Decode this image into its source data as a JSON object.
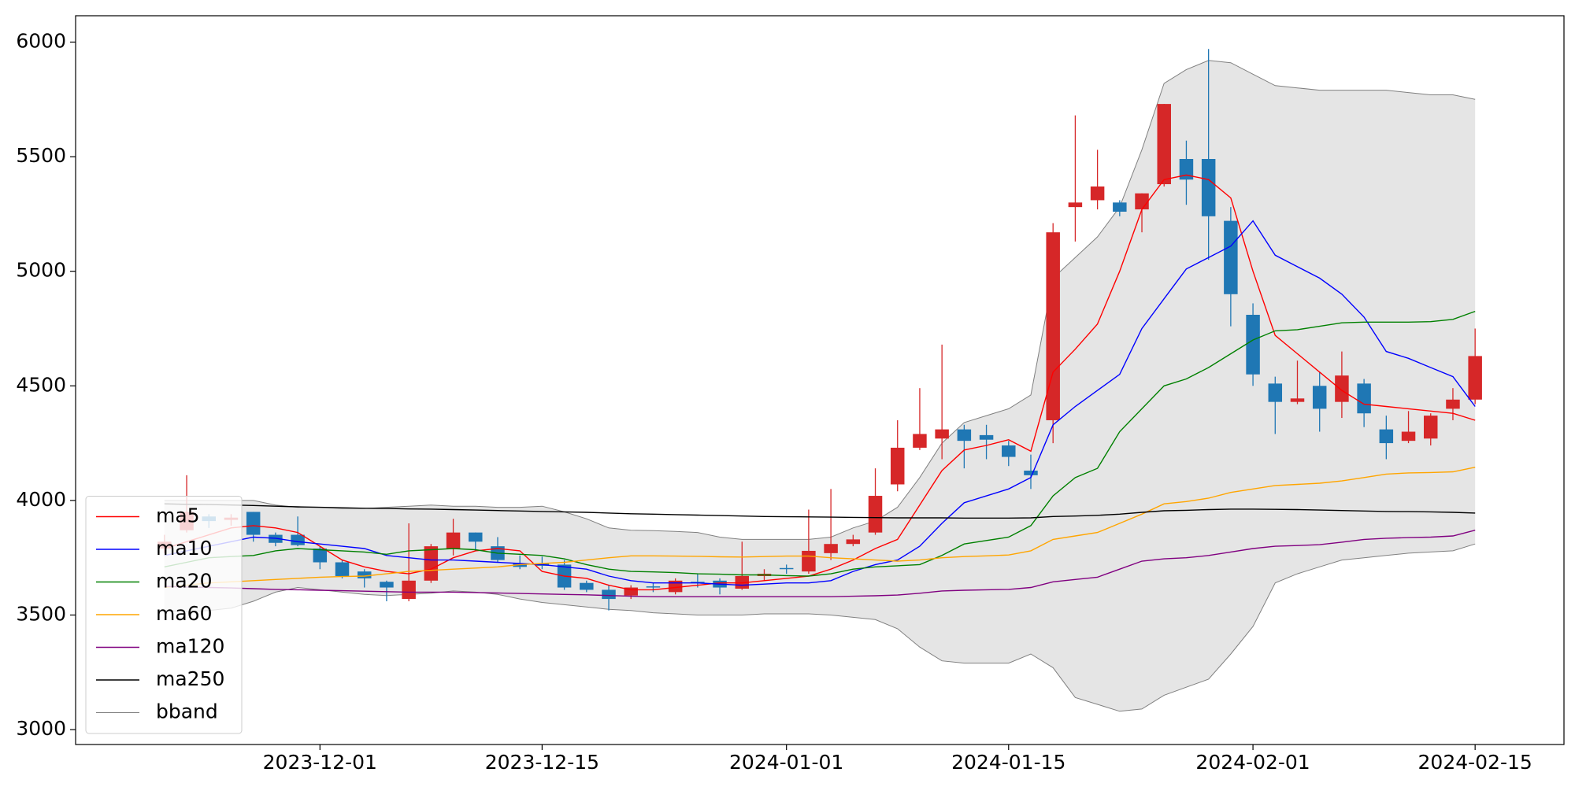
{
  "chart_data": {
    "type": "candlestick",
    "categories": [
      null,
      null,
      null,
      null,
      null,
      null,
      null,
      "2023-12-01",
      null,
      null,
      null,
      null,
      null,
      null,
      null,
      null,
      null,
      "2023-12-15",
      null,
      null,
      null,
      null,
      null,
      null,
      null,
      null,
      null,
      null,
      "2024-01-01",
      null,
      null,
      null,
      null,
      null,
      null,
      null,
      null,
      null,
      "2024-01-15",
      null,
      null,
      null,
      null,
      null,
      null,
      null,
      null,
      null,
      null,
      "2024-02-01",
      null,
      null,
      null,
      null,
      null,
      null,
      null,
      null,
      null,
      "2024-02-15"
    ],
    "candles": {
      "up_color": "#d62728",
      "down_color": "#1f77b4",
      "open": [
        3790,
        3870,
        3930,
        3915,
        3950,
        3850,
        3850,
        3790,
        3730,
        3690,
        3645,
        3570,
        3650,
        3790,
        3860,
        3800,
        3725,
        3725,
        3720,
        3640,
        3610,
        3585,
        3625,
        3600,
        3645,
        3650,
        3615,
        3670,
        3705,
        3690,
        3770,
        3810,
        3860,
        4070,
        4230,
        4270,
        4310,
        4285,
        4240,
        4130,
        4350,
        5280,
        5310,
        5300,
        5270,
        5380,
        5490,
        5490,
        5220,
        4810,
        4510,
        4430,
        4500,
        4430,
        4510,
        4310,
        4260,
        4270,
        4400,
        4440
      ],
      "high": [
        3850,
        4110,
        3940,
        3940,
        3950,
        3860,
        3930,
        3800,
        3740,
        3700,
        3650,
        3900,
        3810,
        3920,
        3860,
        3840,
        3760,
        3755,
        3740,
        3650,
        3630,
        3630,
        3640,
        3660,
        3680,
        3660,
        3820,
        3700,
        3720,
        3960,
        4050,
        3850,
        4140,
        4350,
        4490,
        4680,
        4330,
        4330,
        4260,
        4200,
        5210,
        5680,
        5530,
        5310,
        5340,
        5730,
        5570,
        5970,
        5280,
        4860,
        4540,
        4610,
        4560,
        4650,
        4530,
        4370,
        4390,
        4380,
        4490,
        4750
      ],
      "low": [
        3770,
        3860,
        3880,
        3890,
        3820,
        3800,
        3800,
        3700,
        3660,
        3620,
        3560,
        3560,
        3640,
        3760,
        3780,
        3730,
        3700,
        3700,
        3610,
        3600,
        3520,
        3570,
        3600,
        3590,
        3620,
        3590,
        3610,
        3650,
        3680,
        3680,
        3740,
        3800,
        3850,
        4040,
        4220,
        4180,
        4140,
        4180,
        4150,
        4050,
        4250,
        5130,
        5270,
        5240,
        5170,
        5370,
        5290,
        5050,
        4760,
        4500,
        4290,
        4420,
        4300,
        4360,
        4320,
        4180,
        4250,
        4240,
        4350,
        4420
      ],
      "close": [
        3820,
        3950,
        3910,
        3925,
        3850,
        3815,
        3805,
        3730,
        3670,
        3660,
        3620,
        3650,
        3800,
        3860,
        3820,
        3740,
        3710,
        3715,
        3620,
        3610,
        3570,
        3620,
        3620,
        3650,
        3640,
        3620,
        3670,
        3680,
        3700,
        3780,
        3810,
        3830,
        4020,
        4230,
        4290,
        4310,
        4260,
        4265,
        4190,
        4110,
        5170,
        5300,
        5370,
        5260,
        5340,
        5730,
        5400,
        5240,
        4900,
        4550,
        4430,
        4445,
        4400,
        4545,
        4380,
        4250,
        4300,
        4370,
        4440,
        4630
      ]
    },
    "series": [
      {
        "name": "ma5",
        "color": "#ff0000",
        "values": [
          3790,
          3820,
          3850,
          3880,
          3890,
          3880,
          3860,
          3800,
          3740,
          3710,
          3690,
          3680,
          3700,
          3750,
          3780,
          3790,
          3780,
          3690,
          3670,
          3660,
          3630,
          3610,
          3610,
          3620,
          3630,
          3640,
          3640,
          3650,
          3660,
          3670,
          3700,
          3740,
          3790,
          3830,
          3980,
          4130,
          4220,
          4240,
          4265,
          4215,
          4560,
          4660,
          4770,
          5000,
          5270,
          5400,
          5420,
          5400,
          5320,
          5000,
          4720,
          4640,
          4560,
          4480,
          4420,
          4410,
          4400,
          4390,
          4380,
          4350
        ]
      },
      {
        "name": "ma10",
        "color": "#0000ff",
        "values": [
          3760,
          3780,
          3800,
          3820,
          3840,
          3835,
          3820,
          3810,
          3800,
          3790,
          3760,
          3750,
          3740,
          3740,
          3735,
          3730,
          3725,
          3720,
          3710,
          3700,
          3670,
          3650,
          3640,
          3640,
          3640,
          3635,
          3630,
          3635,
          3640,
          3640,
          3650,
          3690,
          3720,
          3740,
          3800,
          3900,
          3990,
          4020,
          4050,
          4100,
          4330,
          4410,
          4480,
          4550,
          4750,
          4880,
          5010,
          5060,
          5110,
          5220,
          5070,
          5020,
          4970,
          4900,
          4800,
          4650,
          4620,
          4580,
          4540,
          4410
        ]
      },
      {
        "name": "ma20",
        "color": "#008000",
        "values": [
          3710,
          3730,
          3750,
          3755,
          3760,
          3780,
          3790,
          3785,
          3780,
          3775,
          3765,
          3780,
          3785,
          3790,
          3785,
          3770,
          3765,
          3760,
          3745,
          3720,
          3700,
          3690,
          3688,
          3685,
          3680,
          3678,
          3675,
          3675,
          3672,
          3670,
          3680,
          3700,
          3710,
          3715,
          3720,
          3760,
          3810,
          3825,
          3840,
          3890,
          4020,
          4100,
          4140,
          4300,
          4400,
          4500,
          4530,
          4580,
          4640,
          4700,
          4740,
          4745,
          4760,
          4775,
          4778,
          4778,
          4778,
          4780,
          4790,
          4825
        ]
      },
      {
        "name": "ma60",
        "color": "#ffa500",
        "values": [
          3620,
          3630,
          3640,
          3645,
          3650,
          3655,
          3660,
          3665,
          3668,
          3670,
          3680,
          3690,
          3695,
          3700,
          3705,
          3710,
          3720,
          3725,
          3730,
          3740,
          3750,
          3758,
          3758,
          3757,
          3756,
          3754,
          3753,
          3755,
          3757,
          3757,
          3750,
          3745,
          3740,
          3735,
          3740,
          3750,
          3755,
          3758,
          3762,
          3780,
          3830,
          3845,
          3860,
          3900,
          3940,
          3985,
          3995,
          4010,
          4035,
          4050,
          4065,
          4070,
          4075,
          4085,
          4100,
          4115,
          4120,
          4122,
          4125,
          4145
        ]
      },
      {
        "name": "ma120",
        "color": "#800080",
        "values": [
          3625,
          3622,
          3620,
          3618,
          3615,
          3612,
          3610,
          3608,
          3606,
          3604,
          3602,
          3600,
          3600,
          3600,
          3598,
          3596,
          3594,
          3592,
          3590,
          3588,
          3585,
          3582,
          3580,
          3580,
          3580,
          3580,
          3580,
          3580,
          3580,
          3580,
          3580,
          3582,
          3584,
          3587,
          3595,
          3605,
          3608,
          3610,
          3612,
          3620,
          3645,
          3655,
          3665,
          3700,
          3735,
          3745,
          3750,
          3760,
          3775,
          3790,
          3800,
          3803,
          3807,
          3818,
          3830,
          3835,
          3838,
          3840,
          3845,
          3870
        ]
      },
      {
        "name": "ma250",
        "color": "#000000",
        "values": [
          3985,
          3983,
          3982,
          3980,
          3978,
          3975,
          3972,
          3970,
          3968,
          3966,
          3965,
          3963,
          3962,
          3960,
          3958,
          3956,
          3954,
          3952,
          3950,
          3948,
          3945,
          3942,
          3940,
          3938,
          3936,
          3934,
          3932,
          3930,
          3929,
          3928,
          3927,
          3926,
          3925,
          3924,
          3924,
          3924,
          3923,
          3923,
          3923,
          3924,
          3930,
          3932,
          3935,
          3940,
          3948,
          3955,
          3957,
          3960,
          3962,
          3962,
          3961,
          3960,
          3958,
          3956,
          3954,
          3952,
          3951,
          3950,
          3948,
          3945
        ]
      }
    ],
    "bband": {
      "name": "bband",
      "color": "#808080",
      "fill": "#e5e5e5",
      "upper": [
        4000,
        4000,
        4000,
        4000,
        4000,
        3980,
        3970,
        3970,
        3965,
        3965,
        3970,
        3975,
        3980,
        3975,
        3975,
        3970,
        3970,
        3975,
        3950,
        3920,
        3880,
        3870,
        3868,
        3865,
        3860,
        3840,
        3830,
        3830,
        3830,
        3830,
        3840,
        3880,
        3910,
        3970,
        4100,
        4250,
        4340,
        4370,
        4400,
        4460,
        4970,
        5060,
        5150,
        5280,
        5530,
        5820,
        5880,
        5920,
        5910,
        5860,
        5810,
        5800,
        5790,
        5790,
        5790,
        5790,
        5780,
        5770,
        5770,
        5750
      ],
      "lower": [
        3520,
        3515,
        3520,
        3530,
        3560,
        3600,
        3620,
        3610,
        3600,
        3590,
        3585,
        3590,
        3595,
        3605,
        3600,
        3590,
        3570,
        3555,
        3545,
        3535,
        3525,
        3520,
        3510,
        3505,
        3500,
        3500,
        3500,
        3505,
        3505,
        3505,
        3500,
        3490,
        3480,
        3440,
        3360,
        3300,
        3290,
        3290,
        3290,
        3330,
        3270,
        3140,
        3110,
        3080,
        3090,
        3150,
        3185,
        3220,
        3330,
        3450,
        3640,
        3680,
        3710,
        3740,
        3750,
        3760,
        3770,
        3775,
        3780,
        3810
      ]
    },
    "ylim": [
      2935,
      6115
    ],
    "yticks": [
      3000,
      3500,
      4000,
      4500,
      5000,
      5500,
      6000
    ],
    "legend": "lower left"
  }
}
